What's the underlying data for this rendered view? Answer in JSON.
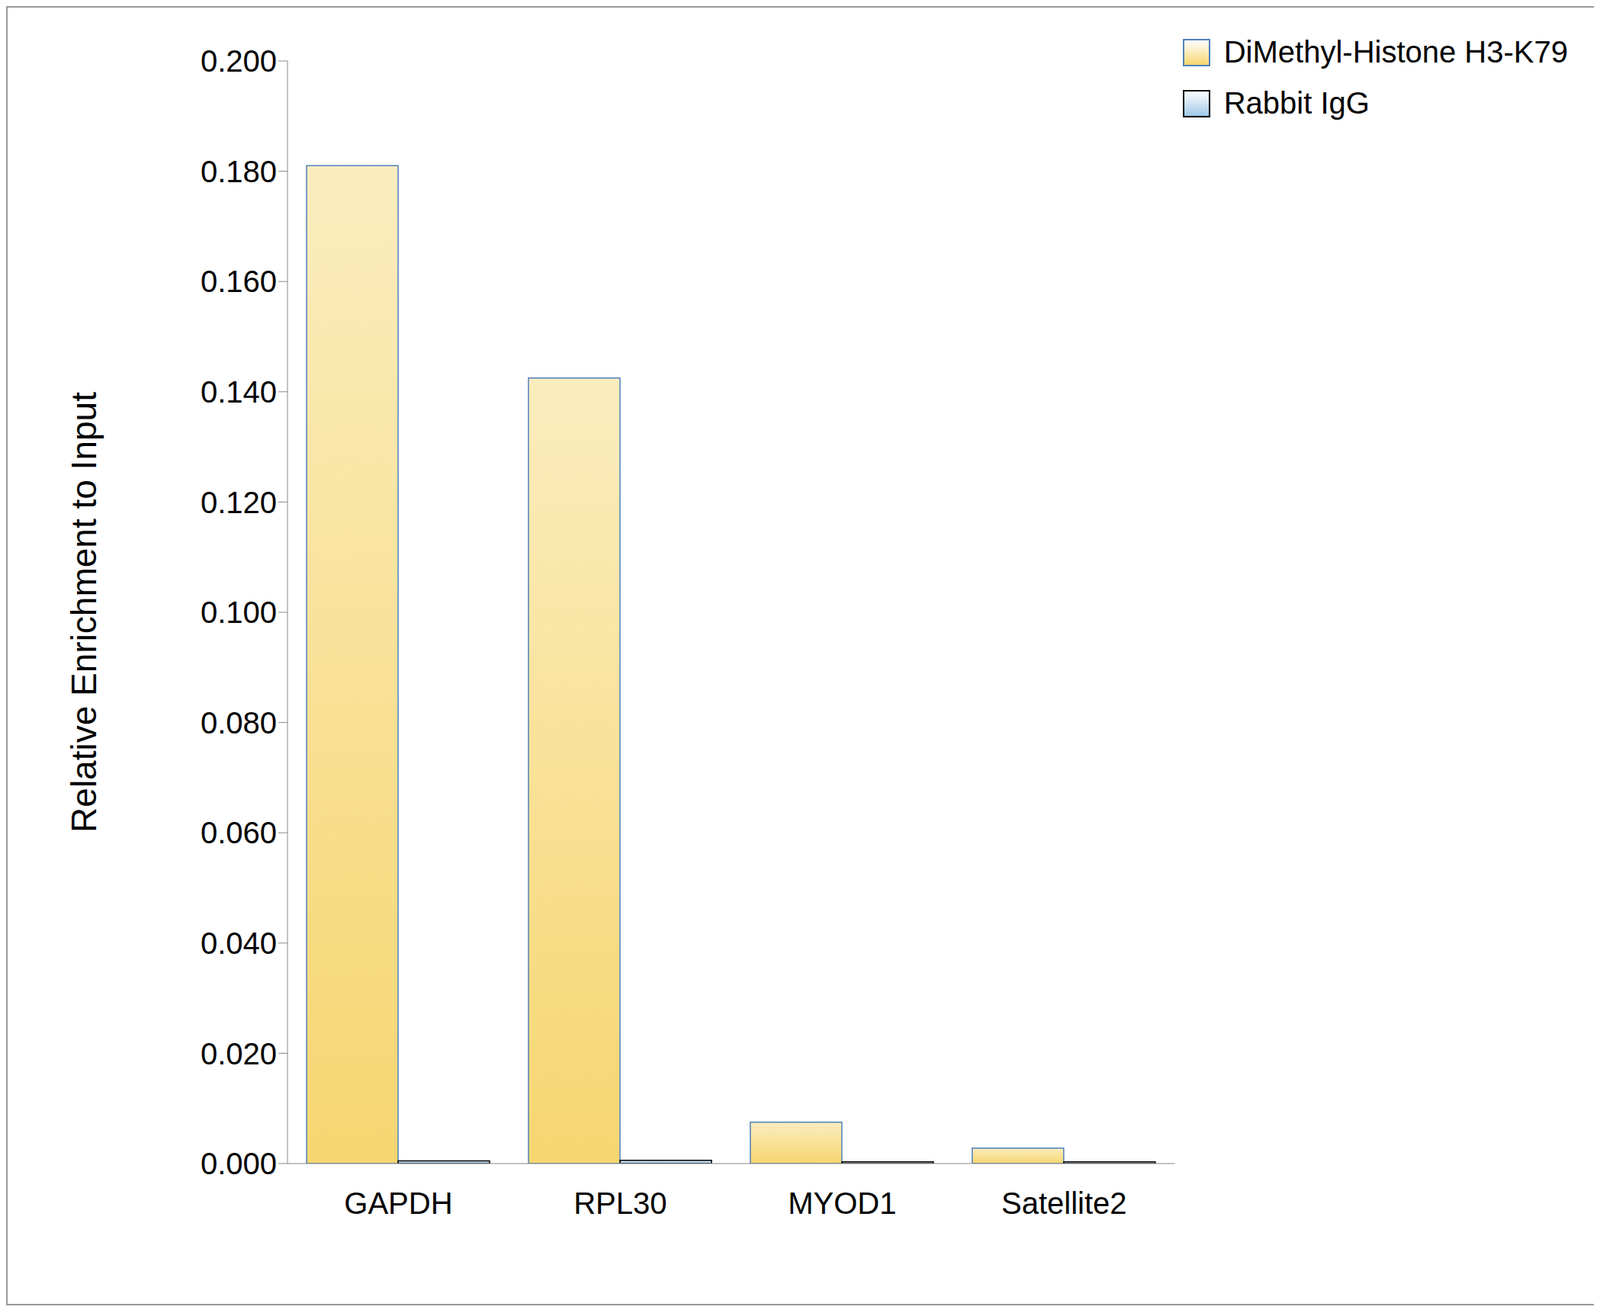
{
  "chart_data": {
    "type": "bar",
    "categories": [
      "GAPDH",
      "RPL30",
      "MYOD1",
      "Satellite2"
    ],
    "y_label": "Relative Enrichment to Input",
    "series": [
      {
        "name": "DiMethyl-Histone H3-K79",
        "color": "#f6d670",
        "values": [
          0.181,
          0.1425,
          0.0075,
          0.0028
        ]
      },
      {
        "name": "Rabbit IgG",
        "color": "#9fc8e8",
        "values": [
          0.0005,
          0.0006,
          0.0003,
          0.0003
        ]
      }
    ],
    "ylim": [
      0,
      0.2
    ],
    "yticks": [
      {
        "value": 0,
        "label": "0.000"
      },
      {
        "value": 0.02,
        "label": "0.020"
      },
      {
        "value": 0.04,
        "label": "0.040"
      },
      {
        "value": 0.06,
        "label": "0.060"
      },
      {
        "value": 0.08,
        "label": "0.080"
      },
      {
        "value": 0.1,
        "label": "0.100"
      },
      {
        "value": 0.12,
        "label": "0.120"
      },
      {
        "value": 0.14,
        "label": "0.140"
      },
      {
        "value": 0.16,
        "label": "0.160"
      },
      {
        "value": 0.18,
        "label": "0.180"
      },
      {
        "value": 0.2,
        "label": "0.200"
      }
    ],
    "grid": false,
    "legend": "top-right"
  }
}
